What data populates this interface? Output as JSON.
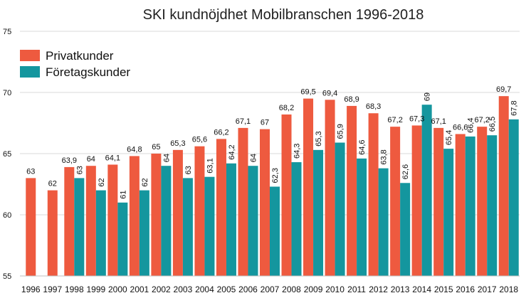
{
  "chart_data": {
    "type": "bar",
    "title": "SKI kundnöjdhet Mobilbranschen 1996-2018",
    "xlabel": "",
    "ylabel": "",
    "ylim": [
      55,
      75
    ],
    "yticks": [
      55,
      60,
      65,
      70,
      75
    ],
    "grid": true,
    "legend_position": "top-left",
    "categories": [
      "1996",
      "1997",
      "1998",
      "1999",
      "2000",
      "2001",
      "2002",
      "2003",
      "2004",
      "2005",
      "2006",
      "2007",
      "2008",
      "2009",
      "2010",
      "2011",
      "2012",
      "2013",
      "2014",
      "2015",
      "2016",
      "2017",
      "2018"
    ],
    "series": [
      {
        "name": "Privatkunder",
        "color": "#ee5a3f",
        "values": [
          63,
          62,
          63.9,
          64,
          64.1,
          64.8,
          65,
          65.3,
          65.6,
          66.2,
          67.1,
          67,
          68.2,
          69.5,
          69.4,
          68.9,
          68.3,
          67.2,
          67.3,
          67.1,
          66.6,
          67.2,
          69.7
        ],
        "labels": [
          "63",
          "62",
          "63,9",
          "64",
          "64,1",
          "64,8",
          "65",
          "65,3",
          "65,6",
          "66,2",
          "67,1",
          "67",
          "68,2",
          "69,5",
          "69,4",
          "68,9",
          "68,3",
          "67,2",
          "67,3",
          "67,1",
          "66,6",
          "67,2",
          "69,7"
        ]
      },
      {
        "name": "Företagskunder",
        "color": "#14969e",
        "values": [
          null,
          null,
          63,
          62,
          61,
          62,
          64,
          63,
          63.1,
          64.2,
          64,
          62.3,
          64.3,
          65.3,
          65.9,
          64.6,
          63.8,
          62.6,
          69,
          65.4,
          66.4,
          66.5,
          67.8
        ],
        "labels": [
          "",
          "",
          "63",
          "62",
          "61",
          "62",
          "64",
          "63",
          "63,1",
          "64,2",
          "64",
          "62,3",
          "64,3",
          "65,3",
          "65,9",
          "64,6",
          "63,8",
          "62,6",
          "69",
          "65,4",
          "66,4",
          "66,5",
          "67,8"
        ]
      }
    ]
  }
}
